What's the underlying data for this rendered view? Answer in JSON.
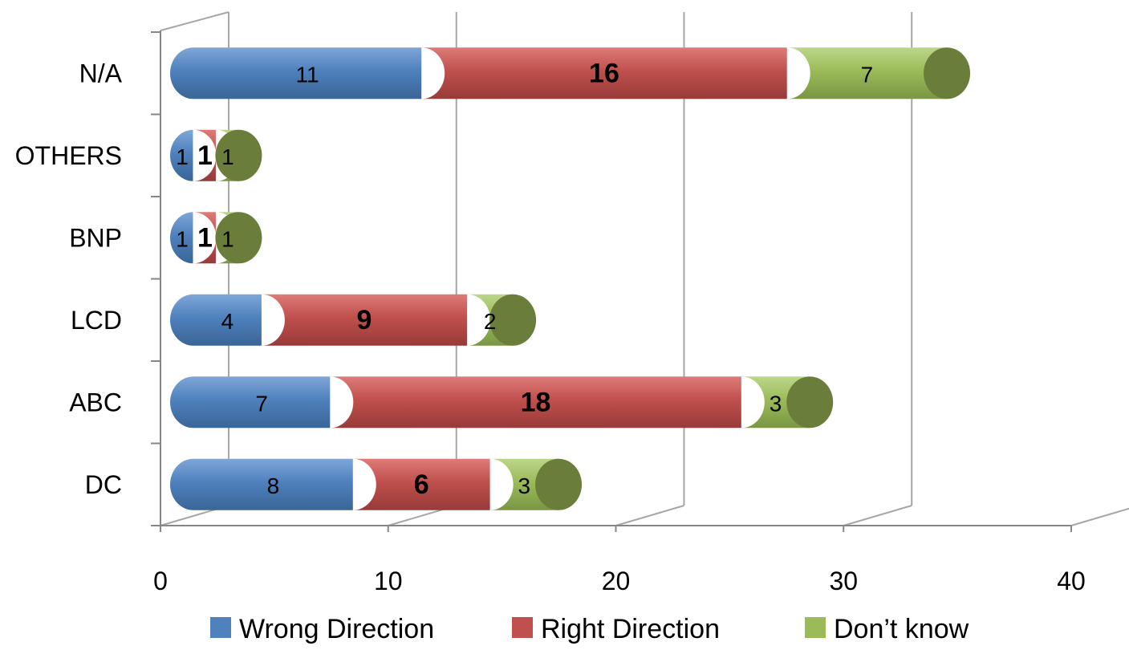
{
  "chart_data": {
    "type": "bar",
    "orientation": "horizontal",
    "stacked": true,
    "style": "3d-cylinder",
    "categories": [
      "DC",
      "ABC",
      "LCD",
      "BNP",
      "OTHERS",
      "N/A"
    ],
    "series": [
      {
        "name": "Wrong Direction",
        "values": [
          8,
          7,
          4,
          1,
          1,
          11
        ],
        "color": "#4f81bd",
        "label_bold": false
      },
      {
        "name": "Right Direction",
        "values": [
          6,
          18,
          9,
          1,
          1,
          16
        ],
        "color": "#c0504d",
        "label_bold": true
      },
      {
        "name": "Don’t know",
        "values": [
          3,
          3,
          2,
          1,
          1,
          7
        ],
        "color": "#9bbb59",
        "label_bold": false
      }
    ],
    "xlim": [
      0,
      40
    ],
    "xticks": [
      "0",
      "10",
      "20",
      "30",
      "40"
    ],
    "grid": true,
    "legend": "bottom",
    "title": "",
    "xlabel": "",
    "ylabel": ""
  }
}
